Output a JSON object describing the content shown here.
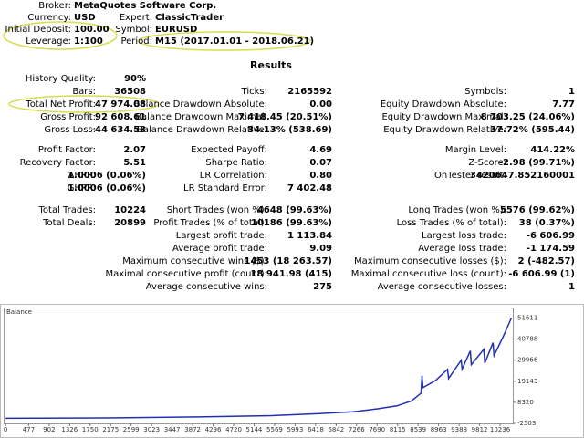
{
  "report": {
    "header": [
      [
        {
          "label": "Broker:",
          "value": "MetaQuotes Software Corp."
        }
      ],
      [
        {
          "label": "Currency:",
          "value": "USD"
        },
        {
          "label": "Expert:",
          "value": "ClassicTrader"
        }
      ],
      [
        {
          "label": "Initial Deposit:",
          "value": "100.00"
        },
        {
          "label": "Symbol:",
          "value": "EURUSD"
        }
      ],
      [
        {
          "label": "Leverage:",
          "value": "1:100"
        },
        {
          "label": "Period:",
          "value": "M15 (2017.01.01 - 2018.06.21)"
        }
      ]
    ],
    "title": "Results",
    "rows": [
      [
        {
          "label": "History Quality:",
          "value": "90%"
        },
        null,
        null
      ],
      [
        {
          "label": "Bars:",
          "value": "36508"
        },
        {
          "label": "Ticks:",
          "value": "2165592"
        },
        {
          "label": "Symbols:",
          "value": "1"
        }
      ],
      [
        {
          "label": "Total Net Profit:",
          "value": "47 974.08"
        },
        {
          "label": "Balance Drawdown Absolute:",
          "value": "0.00"
        },
        {
          "label": "Equity Drawdown Absolute:",
          "value": "7.77"
        }
      ],
      [
        {
          "label": "Gross Profit:",
          "value": "92 608.61"
        },
        {
          "label": "Balance Drawdown Maximal:",
          "value": "7 418.45 (20.51%)"
        },
        {
          "label": "Equity Drawdown Maximal:",
          "value": "8 703.25 (24.06%)"
        }
      ],
      [
        {
          "label": "Gross Loss:",
          "value": "-44 634.53"
        },
        {
          "label": "Balance Drawdown Relative:",
          "value": "34.13% (538.69)"
        },
        {
          "label": "Equity Drawdown Relative:",
          "value": "37.72% (595.44)"
        }
      ],
      [
        {
          "label": "Profit Factor:",
          "value": "2.07"
        },
        {
          "label": "Expected Payoff:",
          "value": "4.69"
        },
        {
          "label": "Margin Level:",
          "value": "414.22%"
        }
      ],
      [
        {
          "label": "Recovery Factor:",
          "value": "5.51"
        },
        {
          "label": "Sharpe Ratio:",
          "value": "0.07"
        },
        {
          "label": "Z-Score:",
          "value": "-2.98 (99.71%)"
        }
      ],
      [
        {
          "label": "AHPR:",
          "value": "1.0006 (0.06%)"
        },
        {
          "label": "LR Correlation:",
          "value": "0.80"
        },
        {
          "label": "OnTester result:",
          "value": "3420647.852160001"
        }
      ],
      [
        {
          "label": "GHPR:",
          "value": "1.0006 (0.06%)"
        },
        {
          "label": "LR Standard Error:",
          "value": "7 402.48"
        },
        null
      ],
      [
        {
          "label": "Total Trades:",
          "value": "10224"
        },
        {
          "label": "Short Trades (won %):",
          "value": "4648 (99.63%)"
        },
        {
          "label": "Long Trades (won %):",
          "value": "5576 (99.62%)"
        }
      ],
      [
        {
          "label": "Total Deals:",
          "value": "20899"
        },
        {
          "label": "Profit Trades (% of total):",
          "value": "10186 (99.63%)"
        },
        {
          "label": "Loss Trades (% of total):",
          "value": "38 (0.37%)"
        }
      ],
      [
        null,
        {
          "label": "Largest profit trade:",
          "value": "1 113.84"
        },
        {
          "label": "Largest loss trade:",
          "value": "-6 606.99"
        }
      ],
      [
        null,
        {
          "label": "Average profit trade:",
          "value": "9.09"
        },
        {
          "label": "Average loss trade:",
          "value": "-1 174.59"
        }
      ],
      [
        null,
        {
          "label": "Maximum consecutive wins ($):",
          "value": "1453 (18 263.57)"
        },
        {
          "label": "Maximum consecutive losses ($):",
          "value": "2 (-482.57)"
        }
      ],
      [
        null,
        {
          "label": "Maximal consecutive profit (count):",
          "value": "18 941.98 (415)"
        },
        {
          "label": "Maximal consecutive loss (count):",
          "value": "-6 606.99 (1)"
        }
      ],
      [
        null,
        {
          "label": "Average consecutive wins:",
          "value": "275"
        },
        {
          "label": "Average consecutive losses:",
          "value": "1"
        }
      ]
    ]
  },
  "chart_data": {
    "type": "line",
    "title": "Balance",
    "x": [
      0,
      2000,
      4000,
      5500,
      6500,
      7200,
      7700,
      8100,
      8400,
      8600,
      8620,
      8640,
      8900,
      9150,
      9170,
      9430,
      9450,
      9620,
      9640,
      9900,
      9920,
      10090,
      10110,
      10300,
      10470
    ],
    "series": [
      {
        "name": "Balance",
        "color": "#2030b0",
        "values": [
          100,
          300,
          800,
          1500,
          2500,
          3500,
          5000,
          6500,
          9000,
          13000,
          21965,
          15850,
          19500,
          25260,
          20550,
          29966,
          25300,
          34670,
          27600,
          35500,
          28500,
          38900,
          32300,
          42000,
          51600
        ]
      }
    ],
    "xlim": [
      -40,
      10500
    ],
    "ylim": [
      -2503,
      56500
    ],
    "xticks": [
      0,
      477,
      902,
      1326,
      1750,
      2175,
      2599,
      3023,
      3447,
      3872,
      4296,
      4720,
      5144,
      5569,
      5993,
      6418,
      6842,
      7266,
      7690,
      8115,
      8539,
      8963,
      9388,
      9812,
      10236
    ],
    "yticks": [
      -2503,
      8320,
      19143,
      29966,
      40788,
      51611
    ]
  }
}
